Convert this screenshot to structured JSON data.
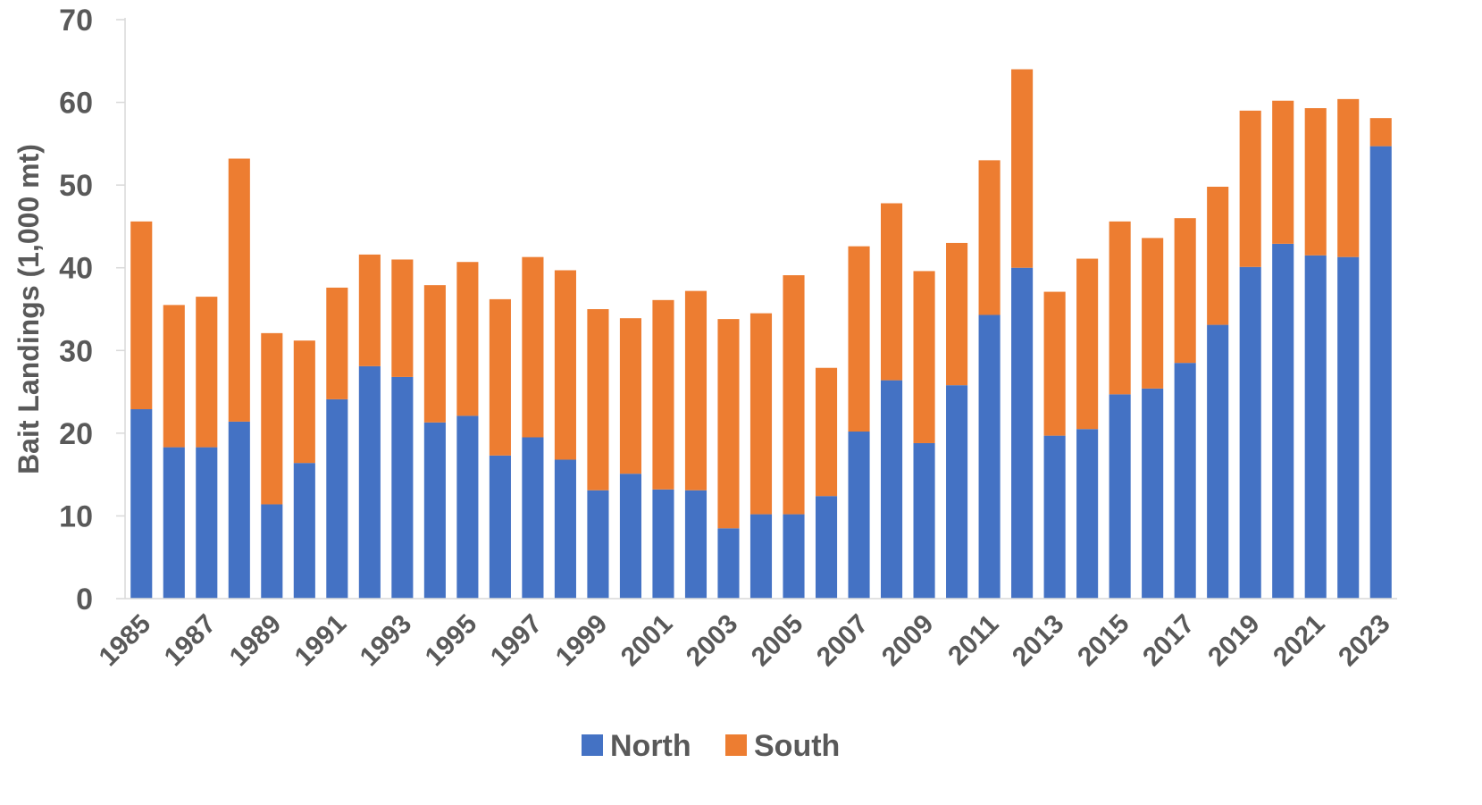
{
  "chart_data": {
    "type": "bar",
    "stacked": true,
    "title": "",
    "xlabel": "",
    "ylabel": "Bait Landings (1,000 mt)",
    "ylim": [
      0,
      70
    ],
    "yticks": [
      0,
      10,
      20,
      30,
      40,
      50,
      60,
      70
    ],
    "grid": false,
    "legend": "bottom",
    "categories": [
      "1985",
      "1986",
      "1987",
      "1988",
      "1989",
      "1990",
      "1991",
      "1992",
      "1993",
      "1994",
      "1995",
      "1996",
      "1997",
      "1998",
      "1999",
      "2000",
      "2001",
      "2002",
      "2003",
      "2004",
      "2005",
      "2006",
      "2007",
      "2008",
      "2009",
      "2010",
      "2011",
      "2012",
      "2013",
      "2014",
      "2015",
      "2016",
      "2017",
      "2018",
      "2019",
      "2020",
      "2021",
      "2022",
      "2023"
    ],
    "xtick_labels": [
      "1985",
      "",
      "1987",
      "",
      "1989",
      "",
      "1991",
      "",
      "1993",
      "",
      "1995",
      "",
      "1997",
      "",
      "1999",
      "",
      "2001",
      "",
      "2003",
      "",
      "2005",
      "",
      "2007",
      "",
      "2009",
      "",
      "2011",
      "",
      "2013",
      "",
      "2015",
      "",
      "2017",
      "",
      "2019",
      "",
      "2021",
      "",
      "2023"
    ],
    "series": [
      {
        "name": "North",
        "color": "#4472C4",
        "values": [
          22.9,
          18.3,
          18.3,
          21.4,
          11.4,
          16.4,
          24.1,
          28.1,
          26.8,
          21.3,
          22.1,
          17.3,
          19.5,
          16.8,
          13.1,
          15.1,
          13.2,
          13.1,
          8.5,
          10.2,
          10.2,
          12.4,
          20.2,
          26.4,
          18.8,
          25.8,
          34.3,
          40.0,
          19.7,
          20.5,
          24.7,
          25.4,
          28.5,
          33.1,
          40.1,
          42.9,
          41.5,
          41.3,
          54.7
        ]
      },
      {
        "name": "South",
        "color": "#ED7D31",
        "values": [
          22.7,
          17.2,
          18.2,
          31.8,
          20.7,
          14.8,
          13.5,
          13.5,
          14.2,
          16.6,
          18.6,
          18.9,
          21.8,
          22.9,
          21.9,
          18.8,
          22.9,
          24.1,
          25.3,
          24.3,
          28.9,
          15.5,
          22.4,
          21.4,
          20.8,
          17.2,
          18.7,
          24.0,
          17.4,
          20.6,
          20.9,
          18.2,
          17.5,
          16.7,
          18.9,
          17.3,
          17.8,
          19.1,
          3.4
        ]
      }
    ]
  }
}
